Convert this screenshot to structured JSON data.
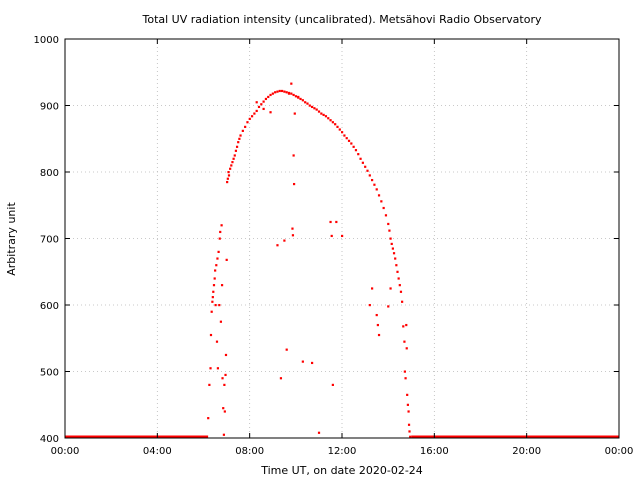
{
  "chart_data": {
    "type": "scatter",
    "title": "Total UV radiation intensity (uncalibrated). Metsähovi Radio Observatory",
    "xlabel": "Time UT, on date 2020-02-24",
    "ylabel": "Arbitrary unit",
    "xlim": [
      0,
      24
    ],
    "ylim": [
      400,
      1000
    ],
    "x_ticks": [
      0,
      4,
      8,
      12,
      16,
      20,
      24
    ],
    "x_tick_labels": [
      "00:00",
      "04:00",
      "08:00",
      "12:00",
      "16:00",
      "20:00",
      "00:00"
    ],
    "y_ticks": [
      400,
      500,
      600,
      700,
      800,
      900,
      1000
    ],
    "y_tick_labels": [
      "400",
      "500",
      "600",
      "700",
      "800",
      "900",
      "1000"
    ],
    "grid": true,
    "series": [
      {
        "color": "#ff0000",
        "points": [
          [
            6.2,
            430
          ],
          [
            6.25,
            480
          ],
          [
            6.3,
            505
          ],
          [
            6.32,
            555
          ],
          [
            6.35,
            590
          ],
          [
            6.38,
            605
          ],
          [
            6.4,
            612
          ],
          [
            6.42,
            620
          ],
          [
            6.45,
            630
          ],
          [
            6.48,
            640
          ],
          [
            6.5,
            652
          ],
          [
            6.52,
            600
          ],
          [
            6.55,
            660
          ],
          [
            6.58,
            545
          ],
          [
            6.6,
            670
          ],
          [
            6.62,
            505
          ],
          [
            6.65,
            680
          ],
          [
            6.68,
            600
          ],
          [
            6.7,
            700
          ],
          [
            6.72,
            710
          ],
          [
            6.75,
            575
          ],
          [
            6.78,
            720
          ],
          [
            6.8,
            630
          ],
          [
            6.82,
            490
          ],
          [
            6.85,
            445
          ],
          [
            6.88,
            405
          ],
          [
            6.9,
            480
          ],
          [
            6.92,
            440
          ],
          [
            6.95,
            495
          ],
          [
            6.97,
            525
          ],
          [
            7.0,
            668
          ],
          [
            7.02,
            785
          ],
          [
            7.05,
            790
          ],
          [
            7.08,
            800
          ],
          [
            7.1,
            795
          ],
          [
            7.15,
            805
          ],
          [
            7.2,
            810
          ],
          [
            7.25,
            815
          ],
          [
            7.3,
            820
          ],
          [
            7.35,
            825
          ],
          [
            7.4,
            832
          ],
          [
            7.45,
            838
          ],
          [
            7.5,
            845
          ],
          [
            7.55,
            850
          ],
          [
            7.6,
            855
          ],
          [
            7.7,
            862
          ],
          [
            7.8,
            868
          ],
          [
            7.9,
            875
          ],
          [
            8.0,
            880
          ],
          [
            8.1,
            884
          ],
          [
            8.2,
            888
          ],
          [
            8.3,
            892
          ],
          [
            8.4,
            898
          ],
          [
            8.5,
            902
          ],
          [
            8.6,
            906
          ],
          [
            8.7,
            910
          ],
          [
            8.8,
            913
          ],
          [
            8.9,
            916
          ],
          [
            9.0,
            918
          ],
          [
            9.1,
            920
          ],
          [
            9.2,
            921
          ],
          [
            9.3,
            922
          ],
          [
            9.4,
            922
          ],
          [
            9.5,
            921
          ],
          [
            9.6,
            920
          ],
          [
            9.7,
            919
          ],
          [
            9.8,
            918
          ],
          [
            9.9,
            916
          ],
          [
            10.0,
            914
          ],
          [
            10.1,
            912
          ],
          [
            10.2,
            910
          ],
          [
            10.3,
            908
          ],
          [
            10.4,
            905
          ],
          [
            10.5,
            903
          ],
          [
            10.6,
            900
          ],
          [
            10.7,
            898
          ],
          [
            10.8,
            896
          ],
          [
            10.9,
            894
          ],
          [
            11.0,
            891
          ],
          [
            11.1,
            888
          ],
          [
            11.2,
            886
          ],
          [
            11.3,
            884
          ],
          [
            11.4,
            881
          ],
          [
            11.5,
            878
          ],
          [
            11.6,
            875
          ],
          [
            11.7,
            872
          ],
          [
            11.8,
            868
          ],
          [
            11.9,
            864
          ],
          [
            12.0,
            860
          ],
          [
            12.1,
            855
          ],
          [
            12.2,
            851
          ],
          [
            12.3,
            847
          ],
          [
            12.4,
            843
          ],
          [
            12.5,
            838
          ],
          [
            12.6,
            833
          ],
          [
            12.7,
            827
          ],
          [
            12.8,
            820
          ],
          [
            12.9,
            814
          ],
          [
            13.0,
            808
          ],
          [
            13.1,
            802
          ],
          [
            13.2,
            795
          ],
          [
            13.3,
            788
          ],
          [
            13.4,
            781
          ],
          [
            13.5,
            774
          ],
          [
            13.6,
            765
          ],
          [
            13.7,
            756
          ],
          [
            13.8,
            746
          ],
          [
            13.9,
            735
          ],
          [
            14.0,
            722
          ],
          [
            14.05,
            712
          ],
          [
            14.1,
            700
          ],
          [
            14.15,
            692
          ],
          [
            14.2,
            685
          ],
          [
            14.25,
            678
          ],
          [
            14.3,
            670
          ],
          [
            14.35,
            660
          ],
          [
            14.4,
            650
          ],
          [
            14.45,
            640
          ],
          [
            14.5,
            630
          ],
          [
            14.55,
            620
          ],
          [
            14.6,
            605
          ],
          [
            14.65,
            568
          ],
          [
            14.7,
            545
          ],
          [
            14.72,
            500
          ],
          [
            14.75,
            490
          ],
          [
            14.78,
            570
          ],
          [
            14.8,
            535
          ],
          [
            14.82,
            465
          ],
          [
            14.85,
            450
          ],
          [
            14.88,
            440
          ],
          [
            14.9,
            420
          ],
          [
            14.92,
            410
          ],
          [
            14.95,
            402
          ],
          [
            8.3,
            905
          ],
          [
            8.6,
            895
          ],
          [
            8.9,
            890
          ],
          [
            9.2,
            690
          ],
          [
            9.35,
            490
          ],
          [
            9.5,
            697
          ],
          [
            9.6,
            533
          ],
          [
            9.7,
            918
          ],
          [
            9.8,
            933
          ],
          [
            9.85,
            715
          ],
          [
            9.87,
            705
          ],
          [
            9.9,
            825
          ],
          [
            9.92,
            782
          ],
          [
            9.95,
            888
          ],
          [
            10.1,
            913
          ],
          [
            10.3,
            515
          ],
          [
            10.7,
            513
          ],
          [
            11.0,
            408
          ],
          [
            11.5,
            725
          ],
          [
            11.55,
            704
          ],
          [
            11.6,
            480
          ],
          [
            11.75,
            725
          ],
          [
            12.0,
            704
          ],
          [
            13.2,
            600
          ],
          [
            13.3,
            625
          ],
          [
            13.5,
            585
          ],
          [
            13.55,
            570
          ],
          [
            13.6,
            555
          ],
          [
            14.0,
            598
          ],
          [
            14.1,
            625
          ]
        ],
        "baseline": {
          "y": 400,
          "x_ranges": [
            [
              0,
              6.2
            ],
            [
              15.0,
              24
            ]
          ]
        }
      }
    ]
  }
}
